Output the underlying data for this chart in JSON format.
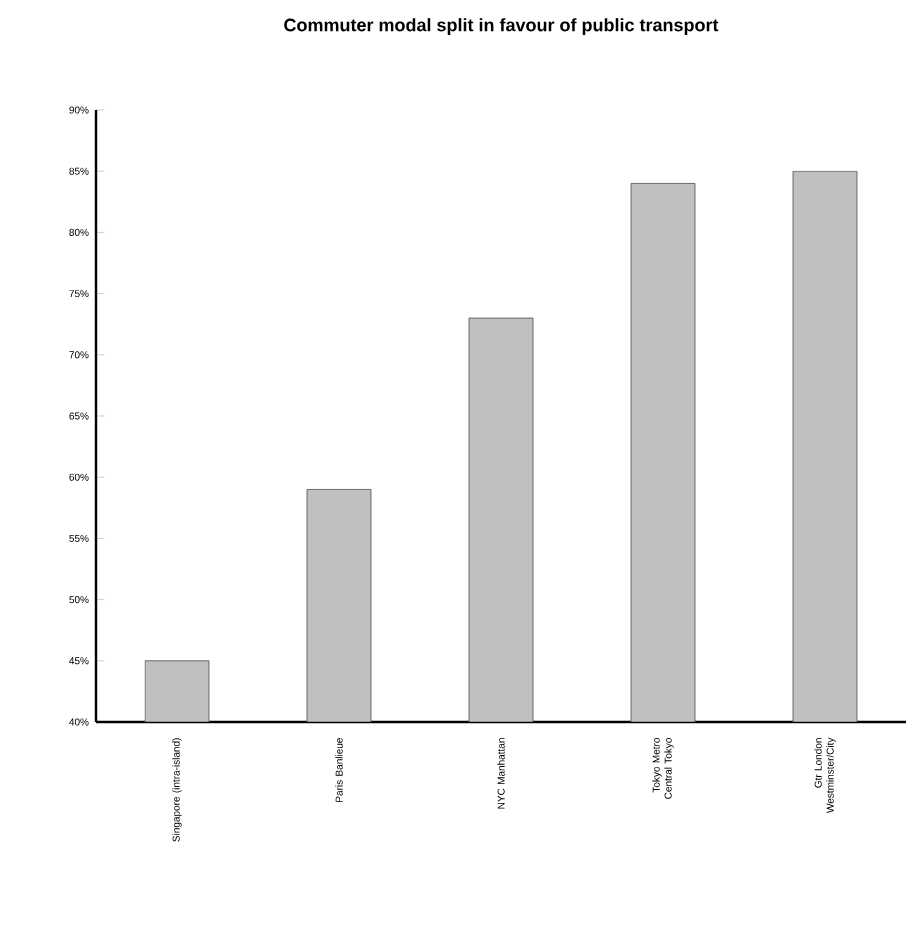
{
  "chart_data": {
    "type": "bar",
    "title": "Commuter modal split in favour of public transport",
    "categories": [
      "Singapore (intra-island)",
      "Paris Banlieue",
      "NYC Manhattan",
      "Tokyo Metro Central Tokyo",
      "Gtr London Westminster/City"
    ],
    "values": [
      45,
      59,
      73,
      84,
      85
    ],
    "color": "#c0c0c0",
    "ylim": [
      40,
      90
    ],
    "yticks": [
      {
        "value": 40,
        "label": "40%"
      },
      {
        "value": 45,
        "label": "45%"
      },
      {
        "value": 50,
        "label": "50%"
      },
      {
        "value": 55,
        "label": "55%"
      },
      {
        "value": 60,
        "label": "60%"
      },
      {
        "value": 65,
        "label": "65%"
      },
      {
        "value": 70,
        "label": "70%"
      },
      {
        "value": 75,
        "label": "75%"
      },
      {
        "value": 80,
        "label": "80%"
      },
      {
        "value": 85,
        "label": "85%"
      },
      {
        "value": 90,
        "label": "90%"
      }
    ]
  }
}
